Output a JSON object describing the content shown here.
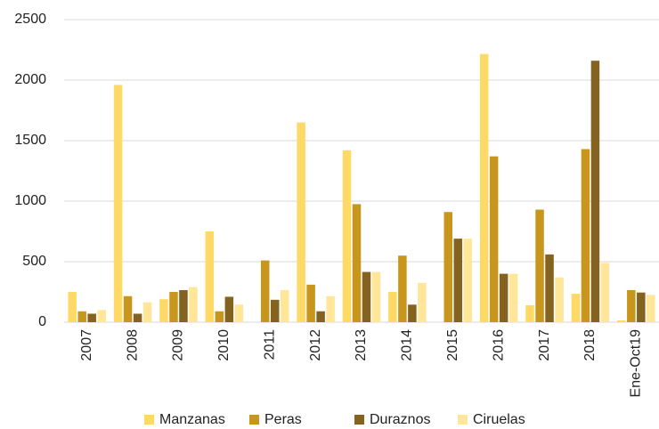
{
  "chart_data": {
    "type": "bar",
    "categories": [
      "2007",
      "2008",
      "2009",
      "2010",
      "2011",
      "2012",
      "2013",
      "2014",
      "2015",
      "2016",
      "2017",
      "2018",
      "Ene-Oct19"
    ],
    "series": [
      {
        "name": "Manzanas",
        "color": "#ffd966",
        "values": [
          250,
          1960,
          190,
          750,
          0,
          1650,
          1420,
          250,
          0,
          2215,
          140,
          235,
          15
        ]
      },
      {
        "name": "Peras",
        "color": "#c8961c",
        "values": [
          90,
          215,
          250,
          90,
          510,
          310,
          975,
          550,
          910,
          1370,
          930,
          1430,
          265
        ]
      },
      {
        "name": "Duraznos",
        "color": "#846220",
        "values": [
          70,
          70,
          265,
          210,
          185,
          90,
          415,
          145,
          690,
          400,
          560,
          2160,
          245
        ]
      },
      {
        "name": "Ciruelas",
        "color": "#ffe699",
        "values": [
          100,
          165,
          290,
          145,
          265,
          215,
          415,
          325,
          690,
          400,
          370,
          490,
          225
        ]
      }
    ],
    "ylim": [
      0,
      2500
    ],
    "yticks": [
      0,
      500,
      1000,
      1500,
      2000,
      2500
    ],
    "grid": true,
    "legend": "bottom"
  }
}
